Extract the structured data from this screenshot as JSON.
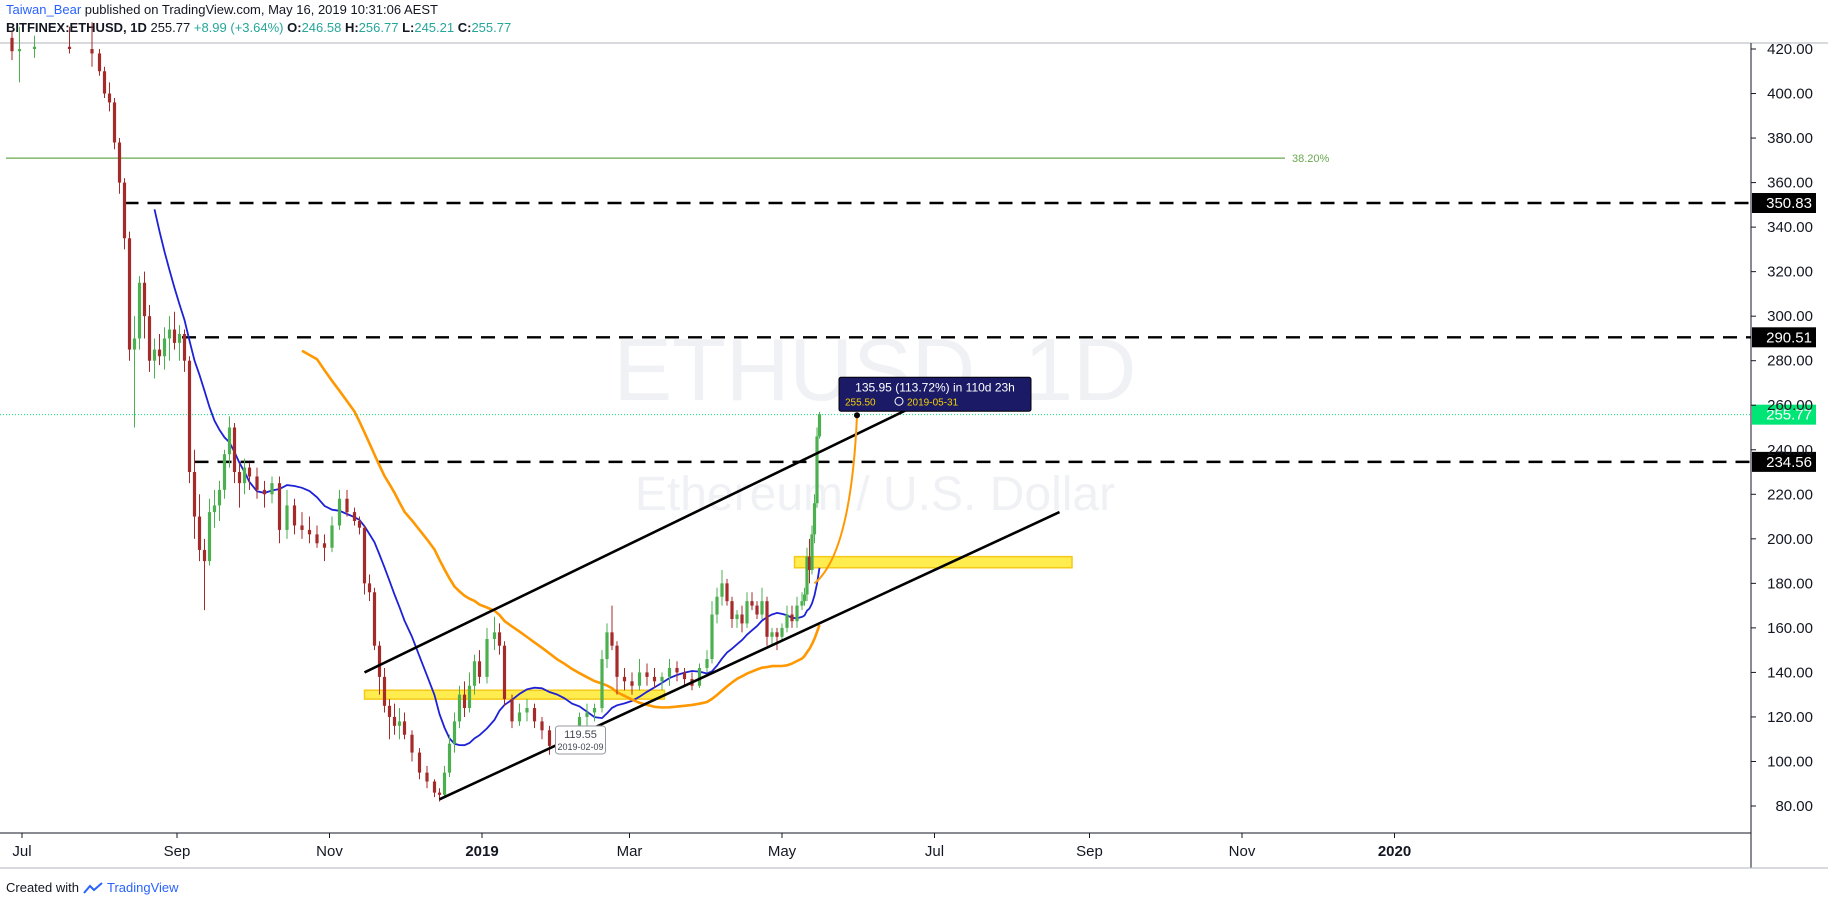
{
  "header": {
    "author": "Taiwan_Bear",
    "published_text": "published on TradingView.com, May 16, 2019 10:31:06 AEST",
    "symbol": "BITFINEX:ETHUSD, 1D",
    "last": "255.77",
    "change": "+8.99 (+3.64%)",
    "o_label": "O:",
    "o_value": "246.58",
    "h_label": "H:",
    "h_value": "256.77",
    "l_label": "L:",
    "l_value": "245.21",
    "c_label": "C:",
    "c_value": "255.77"
  },
  "footer": {
    "created_with": "Created with",
    "brand": "TradingView"
  },
  "watermark": {
    "symbol": "ETHUSD, 1D",
    "description": "Ethereum / U.S. Dollar"
  },
  "colors": {
    "ma_fast": "#1e22d6",
    "ma_slow": "#ff9800",
    "fib": "#6aa84f",
    "zone": "#ffeb3b",
    "candle_up": "#4caf50",
    "candle_down": "#a52a2a",
    "last_price": "#00e676"
  },
  "chart_data": {
    "type": "candlestick",
    "y_axis": {
      "ticks": [
        "80.00",
        "100.00",
        "120.00",
        "140.00",
        "160.00",
        "180.00",
        "200.00",
        "220.00",
        "240.00",
        "260.00",
        "280.00",
        "300.00",
        "320.00",
        "340.00",
        "360.00",
        "380.00",
        "400.00",
        "420.00"
      ],
      "range": [
        70,
        425
      ]
    },
    "x_axis": {
      "ticks": [
        "Jul",
        "Sep",
        "Nov",
        "2019",
        "Mar",
        "May",
        "Jul",
        "Sep",
        "Nov",
        "2020"
      ]
    },
    "price_levels": [
      {
        "label": "350.83",
        "value": 350.83,
        "style": "dashed"
      },
      {
        "label": "290.51",
        "value": 290.51,
        "style": "dashed"
      },
      {
        "label": "234.56",
        "value": 234.56,
        "style": "dashed"
      }
    ],
    "last_price": {
      "label": "255.77",
      "value": 255.77
    },
    "fib_level": {
      "label": "38.20%",
      "value": 371
    },
    "zones": [
      {
        "from": 128,
        "to": 132,
        "start": "2018-11-15",
        "end": "2019-03-15"
      },
      {
        "from": 187,
        "to": 192,
        "start": "2019-05-06",
        "end": "2019-08-25"
      }
    ],
    "channel": {
      "upper": [
        [
          "2018-11-15",
          140
        ],
        [
          "2019-06-20",
          258
        ]
      ],
      "lower": [
        [
          "2018-12-15",
          83
        ],
        [
          "2019-08-20",
          212
        ]
      ]
    },
    "annotations": {
      "low_label": {
        "value": "119.55",
        "date": "2019-02-09"
      },
      "measure": {
        "text": "135.95 (113.72%) in 110d 23h",
        "sub_price": "255.50",
        "sub_date": "2019-05-31"
      }
    },
    "candles": [
      [
        "2018-06-27",
        425,
        428,
        415,
        419
      ],
      [
        "2018-06-30",
        419,
        430,
        405,
        420
      ],
      [
        "2018-07-06",
        420,
        426,
        416,
        421
      ],
      [
        "2018-07-20",
        421,
        430,
        418,
        420
      ],
      [
        "2018-07-29",
        420,
        432,
        412,
        418
      ],
      [
        "2018-08-01",
        418,
        420,
        408,
        410
      ],
      [
        "2018-08-03",
        410,
        412,
        398,
        400
      ],
      [
        "2018-08-05",
        400,
        405,
        392,
        396
      ],
      [
        "2018-08-07",
        396,
        398,
        375,
        378
      ],
      [
        "2018-08-09",
        378,
        380,
        355,
        360
      ],
      [
        "2018-08-11",
        360,
        362,
        330,
        335
      ],
      [
        "2018-08-13",
        335,
        338,
        280,
        285
      ],
      [
        "2018-08-15",
        285,
        300,
        250,
        290
      ],
      [
        "2018-08-17",
        290,
        318,
        285,
        315
      ],
      [
        "2018-08-19",
        315,
        320,
        290,
        300
      ],
      [
        "2018-08-21",
        300,
        305,
        275,
        280
      ],
      [
        "2018-08-23",
        280,
        290,
        272,
        285
      ],
      [
        "2018-08-25",
        285,
        292,
        278,
        282
      ],
      [
        "2018-08-27",
        282,
        295,
        276,
        290
      ],
      [
        "2018-08-29",
        290,
        300,
        280,
        294
      ],
      [
        "2018-08-31",
        294,
        302,
        285,
        288
      ],
      [
        "2018-09-02",
        288,
        296,
        280,
        292
      ],
      [
        "2018-09-04",
        292,
        294,
        275,
        280
      ],
      [
        "2018-09-06",
        280,
        282,
        225,
        230
      ],
      [
        "2018-09-08",
        230,
        240,
        200,
        210
      ],
      [
        "2018-09-10",
        210,
        220,
        190,
        195
      ],
      [
        "2018-09-12",
        195,
        200,
        168,
        190
      ],
      [
        "2018-09-14",
        190,
        218,
        188,
        212
      ],
      [
        "2018-09-16",
        212,
        222,
        205,
        215
      ],
      [
        "2018-09-18",
        215,
        226,
        208,
        222
      ],
      [
        "2018-09-20",
        222,
        240,
        218,
        238
      ],
      [
        "2018-09-22",
        238,
        255,
        232,
        250
      ],
      [
        "2018-09-24",
        250,
        252,
        225,
        230
      ],
      [
        "2018-09-26",
        230,
        234,
        214,
        225
      ],
      [
        "2018-09-28",
        225,
        236,
        220,
        232
      ],
      [
        "2018-09-30",
        232,
        234,
        222,
        228
      ],
      [
        "2018-10-03",
        228,
        232,
        218,
        222
      ],
      [
        "2018-10-06",
        222,
        226,
        214,
        220
      ],
      [
        "2018-10-09",
        220,
        228,
        216,
        225
      ],
      [
        "2018-10-12",
        225,
        228,
        198,
        204
      ],
      [
        "2018-10-15",
        204,
        222,
        200,
        215
      ],
      [
        "2018-10-18",
        215,
        218,
        202,
        206
      ],
      [
        "2018-10-21",
        206,
        212,
        200,
        204
      ],
      [
        "2018-10-24",
        204,
        210,
        198,
        202
      ],
      [
        "2018-10-27",
        202,
        206,
        196,
        198
      ],
      [
        "2018-10-30",
        198,
        202,
        190,
        196
      ],
      [
        "2018-11-02",
        196,
        210,
        194,
        206
      ],
      [
        "2018-11-05",
        206,
        222,
        204,
        218
      ],
      [
        "2018-11-08",
        218,
        222,
        210,
        212
      ],
      [
        "2018-11-11",
        212,
        214,
        206,
        208
      ],
      [
        "2018-11-13",
        208,
        210,
        202,
        205
      ],
      [
        "2018-11-15",
        205,
        206,
        175,
        180
      ],
      [
        "2018-11-17",
        180,
        184,
        172,
        176
      ],
      [
        "2018-11-19",
        176,
        178,
        150,
        152
      ],
      [
        "2018-11-21",
        152,
        154,
        130,
        138
      ],
      [
        "2018-11-23",
        138,
        142,
        122,
        125
      ],
      [
        "2018-11-25",
        125,
        128,
        110,
        120
      ],
      [
        "2018-11-27",
        120,
        126,
        112,
        116
      ],
      [
        "2018-11-29",
        116,
        124,
        110,
        118
      ],
      [
        "2018-12-01",
        118,
        122,
        110,
        112
      ],
      [
        "2018-12-04",
        112,
        114,
        100,
        104
      ],
      [
        "2018-12-07",
        104,
        106,
        92,
        95
      ],
      [
        "2018-12-10",
        95,
        98,
        88,
        91
      ],
      [
        "2018-12-13",
        91,
        92,
        84,
        86
      ],
      [
        "2018-12-15",
        86,
        88,
        82,
        85
      ],
      [
        "2018-12-17",
        85,
        98,
        84,
        95
      ],
      [
        "2018-12-19",
        95,
        112,
        93,
        108
      ],
      [
        "2018-12-21",
        108,
        122,
        104,
        118
      ],
      [
        "2018-12-23",
        118,
        134,
        115,
        130
      ],
      [
        "2018-12-25",
        130,
        136,
        120,
        124
      ],
      [
        "2018-12-27",
        124,
        140,
        122,
        134
      ],
      [
        "2018-12-29",
        134,
        148,
        130,
        145
      ],
      [
        "2018-12-31",
        145,
        150,
        135,
        138
      ],
      [
        "2019-01-03",
        138,
        160,
        135,
        155
      ],
      [
        "2019-01-06",
        155,
        165,
        150,
        158
      ],
      [
        "2019-01-08",
        158,
        162,
        148,
        152
      ],
      [
        "2019-01-10",
        152,
        154,
        125,
        128
      ],
      [
        "2019-01-13",
        128,
        130,
        115,
        118
      ],
      [
        "2019-01-16",
        118,
        126,
        116,
        122
      ],
      [
        "2019-01-19",
        122,
        128,
        118,
        124
      ],
      [
        "2019-01-22",
        124,
        126,
        115,
        118
      ],
      [
        "2019-01-25",
        118,
        120,
        110,
        114
      ],
      [
        "2019-01-28",
        114,
        116,
        103,
        107
      ],
      [
        "2019-01-31",
        107,
        110,
        104,
        108
      ],
      [
        "2019-02-03",
        108,
        112,
        104,
        110
      ],
      [
        "2019-02-06",
        110,
        114,
        106,
        112
      ],
      [
        "2019-02-09",
        112,
        122,
        110,
        120
      ],
      [
        "2019-02-12",
        120,
        126,
        116,
        122
      ],
      [
        "2019-02-15",
        122,
        126,
        118,
        124
      ],
      [
        "2019-02-18",
        124,
        150,
        122,
        146
      ],
      [
        "2019-02-20",
        146,
        162,
        142,
        158
      ],
      [
        "2019-02-22",
        158,
        170,
        150,
        152
      ],
      [
        "2019-02-24",
        152,
        154,
        130,
        138
      ],
      [
        "2019-02-27",
        138,
        142,
        132,
        136
      ],
      [
        "2019-03-02",
        136,
        140,
        130,
        134
      ],
      [
        "2019-03-05",
        134,
        146,
        132,
        140
      ],
      [
        "2019-03-08",
        140,
        144,
        134,
        138
      ],
      [
        "2019-03-11",
        138,
        142,
        133,
        136
      ],
      [
        "2019-03-14",
        136,
        140,
        132,
        138
      ],
      [
        "2019-03-17",
        138,
        146,
        134,
        142
      ],
      [
        "2019-03-20",
        142,
        145,
        136,
        140
      ],
      [
        "2019-03-23",
        140,
        142,
        134,
        137
      ],
      [
        "2019-03-26",
        137,
        140,
        132,
        134
      ],
      [
        "2019-03-29",
        134,
        144,
        133,
        142
      ],
      [
        "2019-04-01",
        142,
        150,
        140,
        146
      ],
      [
        "2019-04-03",
        146,
        172,
        144,
        166
      ],
      [
        "2019-04-05",
        166,
        178,
        162,
        174
      ],
      [
        "2019-04-07",
        174,
        186,
        170,
        180
      ],
      [
        "2019-04-09",
        180,
        182,
        170,
        172
      ],
      [
        "2019-04-11",
        172,
        174,
        160,
        164
      ],
      [
        "2019-04-13",
        164,
        168,
        160,
        166
      ],
      [
        "2019-04-15",
        166,
        170,
        158,
        162
      ],
      [
        "2019-04-17",
        162,
        176,
        160,
        172
      ],
      [
        "2019-04-19",
        172,
        176,
        168,
        170
      ],
      [
        "2019-04-21",
        170,
        172,
        164,
        166
      ],
      [
        "2019-04-23",
        166,
        178,
        164,
        172
      ],
      [
        "2019-04-25",
        172,
        174,
        152,
        156
      ],
      [
        "2019-04-27",
        156,
        160,
        152,
        158
      ],
      [
        "2019-04-29",
        158,
        160,
        150,
        156
      ],
      [
        "2019-05-01",
        156,
        162,
        154,
        160
      ],
      [
        "2019-05-03",
        160,
        170,
        158,
        166
      ],
      [
        "2019-05-05",
        166,
        170,
        160,
        163
      ],
      [
        "2019-05-07",
        163,
        174,
        160,
        170
      ],
      [
        "2019-05-09",
        170,
        176,
        168,
        172
      ],
      [
        "2019-05-10",
        172,
        178,
        170,
        175
      ],
      [
        "2019-05-11",
        175,
        196,
        172,
        192
      ],
      [
        "2019-05-12",
        192,
        200,
        180,
        186
      ],
      [
        "2019-05-13",
        186,
        206,
        184,
        202
      ],
      [
        "2019-05-14",
        202,
        220,
        198,
        216
      ],
      [
        "2019-05-15",
        216,
        250,
        214,
        246
      ],
      [
        "2019-05-16",
        246,
        257,
        245,
        256
      ]
    ]
  }
}
